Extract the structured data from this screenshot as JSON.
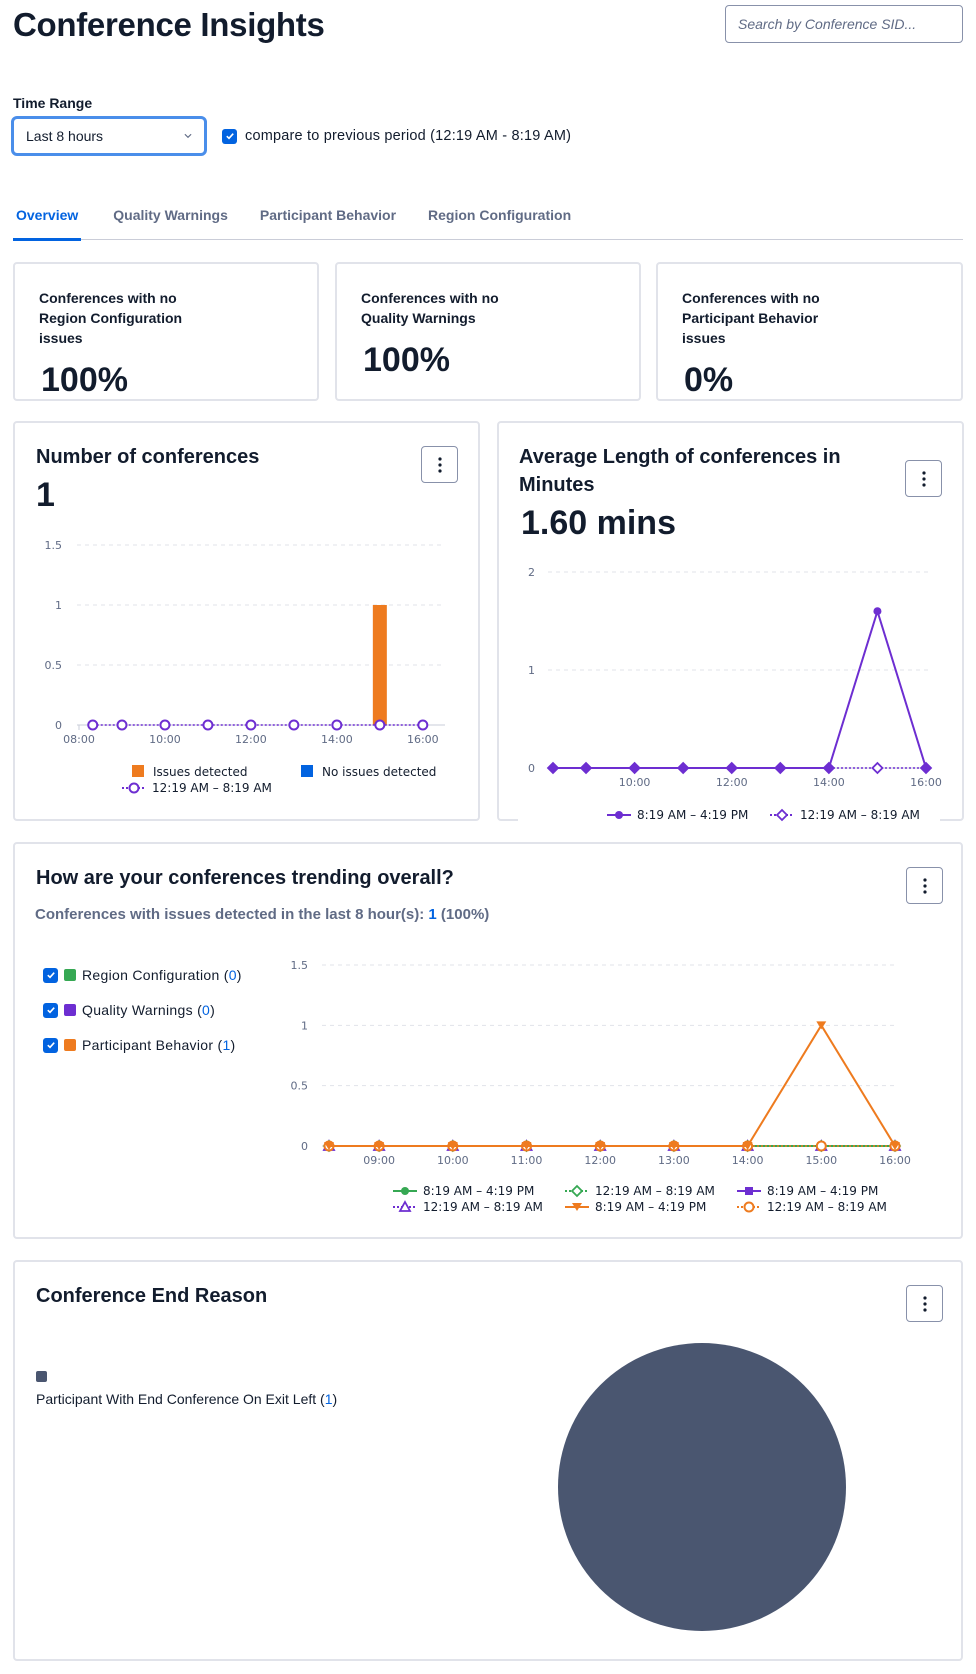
{
  "header": {
    "title": "Conference Insights",
    "search_placeholder": "Search by Conference SID..."
  },
  "filters": {
    "time_range_label": "Time Range",
    "time_range_value": "Last 8 hours",
    "compare_checked": true,
    "compare_label": "compare to previous period (12:19 AM - 8:19 AM)"
  },
  "tabs": [
    {
      "label": "Overview",
      "active": true
    },
    {
      "label": "Quality Warnings",
      "active": false
    },
    {
      "label": "Participant Behavior",
      "active": false
    },
    {
      "label": "Region Configuration",
      "active": false
    }
  ],
  "stat_cards": [
    {
      "label": "Conferences with no Region Configuration issues",
      "value": "100%"
    },
    {
      "label": "Conferences with no Quality Warnings",
      "value": "100%"
    },
    {
      "label": "Conferences with no Participant Behavior issues",
      "value": "0%"
    }
  ],
  "panels": {
    "num_conferences": {
      "title": "Number of conferences",
      "value": "1"
    },
    "avg_length": {
      "title": "Average Length of conferences in Minutes",
      "value": "1.60 mins"
    },
    "trending": {
      "title": "How are your conferences trending overall?",
      "subtitle_prefix": "Conferences with issues detected in the last 8 hour(s): ",
      "subtitle_count": "1",
      "subtitle_pct": " (100%)",
      "filters": [
        {
          "label": "Region Configuration",
          "count": "0",
          "color": "#36a853",
          "checked": true
        },
        {
          "label": "Quality Warnings",
          "count": "0",
          "color": "#6d2ed1",
          "checked": true
        },
        {
          "label": "Participant Behavior",
          "count": "1",
          "color": "#ee7b1f",
          "checked": true
        }
      ]
    },
    "end_reason": {
      "title": "Conference End Reason",
      "legend": [
        {
          "label": "Participant With End Conference On Exit Left",
          "count": "1",
          "color": "#4a5670"
        }
      ]
    }
  },
  "chart_data": [
    {
      "id": "num_conferences",
      "type": "bar",
      "title": "Number of conferences",
      "ylim": [
        0,
        1.5
      ],
      "yticks": [
        "0",
        "0.5",
        "1",
        "1.5"
      ],
      "ytick_values": [
        0,
        0.5,
        1,
        1.5
      ],
      "xlim": [
        8,
        16.33
      ],
      "xticks": [
        "08:00",
        "10:00",
        "12:00",
        "14:00",
        "16:00"
      ],
      "xtick_values": [
        8,
        10,
        12,
        14,
        16
      ],
      "bars": [
        {
          "name": "Issues detected",
          "color": "#ee7b1f",
          "x": [
            15
          ],
          "values": [
            1
          ]
        },
        {
          "name": "No issues detected",
          "color": "#0263e0",
          "x": [],
          "values": []
        }
      ],
      "series": [
        {
          "name": "12:19 AM – 8:19 AM",
          "color": "#6d2ed1",
          "style": "dotted",
          "marker": "circle-open",
          "x": [
            8.32,
            9,
            10,
            11,
            12,
            13,
            14,
            15,
            16
          ],
          "values": [
            0,
            0,
            0,
            0,
            0,
            0,
            0,
            0,
            0
          ]
        }
      ],
      "legend": [
        "Issues detected",
        "No issues detected",
        "12:19 AM – 8:19 AM"
      ]
    },
    {
      "id": "avg_length",
      "type": "line",
      "title": "Average Length of conferences in Minutes",
      "ylim": [
        0,
        2
      ],
      "yticks": [
        "0",
        "1",
        "2"
      ],
      "ytick_values": [
        0,
        1,
        2
      ],
      "xlim": [
        8.32,
        16
      ],
      "xticks": [
        "10:00",
        "12:00",
        "14:00",
        "16:00"
      ],
      "xtick_values": [
        10,
        12,
        14,
        16
      ],
      "series": [
        {
          "name": "8:19 AM – 4:19 PM",
          "color": "#6d2ed1",
          "style": "solid",
          "marker": "circle-filled",
          "x": [
            8.32,
            9,
            10,
            11,
            12,
            13,
            14,
            15,
            16
          ],
          "values": [
            0,
            0,
            0,
            0,
            0,
            0,
            0,
            1.6,
            0
          ]
        },
        {
          "name": "12:19 AM – 8:19 AM",
          "color": "#6d2ed1",
          "style": "dotted",
          "marker": "diamond-open",
          "x": [
            8.32,
            9,
            10,
            11,
            12,
            13,
            14,
            15,
            16
          ],
          "values": [
            0,
            0,
            0,
            0,
            0,
            0,
            0,
            0,
            0
          ]
        }
      ]
    },
    {
      "id": "trending",
      "type": "line",
      "title": "How are your conferences trending overall?",
      "ylim": [
        0,
        1.5
      ],
      "yticks": [
        "0",
        "0.5",
        "1",
        "1.5"
      ],
      "ytick_values": [
        0,
        0.5,
        1,
        1.5
      ],
      "xlim": [
        8.32,
        16
      ],
      "xticks": [
        "09:00",
        "10:00",
        "11:00",
        "12:00",
        "13:00",
        "14:00",
        "15:00",
        "16:00"
      ],
      "xtick_values": [
        9,
        10,
        11,
        12,
        13,
        14,
        15,
        16
      ],
      "series": [
        {
          "name": "8:19 AM – 4:19 PM",
          "group": "Region Configuration",
          "color": "#36a853",
          "style": "solid",
          "marker": "circle-filled",
          "x": [
            8.32,
            9,
            10,
            11,
            12,
            13,
            14,
            15,
            16
          ],
          "values": [
            0,
            0,
            0,
            0,
            0,
            0,
            0,
            0,
            0
          ]
        },
        {
          "name": "12:19 AM – 8:19 AM",
          "group": "Region Configuration",
          "color": "#36a853",
          "style": "dotted",
          "marker": "diamond-open",
          "x": [
            8.32,
            9,
            10,
            11,
            12,
            13,
            14,
            15,
            16
          ],
          "values": [
            0,
            0,
            0,
            0,
            0,
            0,
            0,
            0,
            0
          ]
        },
        {
          "name": "8:19 AM – 4:19 PM",
          "group": "Quality Warnings",
          "color": "#6d2ed1",
          "style": "solid",
          "marker": "square-filled",
          "x": [
            8.32,
            9,
            10,
            11,
            12,
            13,
            14,
            15,
            16
          ],
          "values": [
            0,
            0,
            0,
            0,
            0,
            0,
            0,
            0,
            0
          ]
        },
        {
          "name": "12:19 AM – 8:19 AM",
          "group": "Quality Warnings",
          "color": "#6d2ed1",
          "style": "dotted",
          "marker": "triangle-open",
          "x": [
            8.32,
            9,
            10,
            11,
            12,
            13,
            14,
            15,
            16
          ],
          "values": [
            0,
            0,
            0,
            0,
            0,
            0,
            0,
            0,
            0
          ]
        },
        {
          "name": "8:19 AM – 4:19 PM",
          "group": "Participant Behavior",
          "color": "#ee7b1f",
          "style": "solid",
          "marker": "triangle-down-filled",
          "x": [
            8.32,
            9,
            10,
            11,
            12,
            13,
            14,
            15,
            16
          ],
          "values": [
            0,
            0,
            0,
            0,
            0,
            0,
            0,
            1,
            0
          ]
        },
        {
          "name": "12:19 AM – 8:19 AM",
          "group": "Participant Behavior",
          "color": "#ee7b1f",
          "style": "dotted",
          "marker": "circle-open",
          "x": [
            8.32,
            9,
            10,
            11,
            12,
            13,
            14,
            15,
            16
          ],
          "values": [
            0,
            0,
            0,
            0,
            0,
            0,
            0,
            0,
            0
          ]
        }
      ]
    },
    {
      "id": "end_reason",
      "type": "pie",
      "title": "Conference End Reason",
      "slices": [
        {
          "label": "Participant With End Conference On Exit Left",
          "value": 1,
          "color": "#4a5670"
        }
      ]
    }
  ],
  "colors": {
    "accent": "#0263e0",
    "text": "#121c2d",
    "muted": "#606b85",
    "border": "#e1e3ea"
  }
}
